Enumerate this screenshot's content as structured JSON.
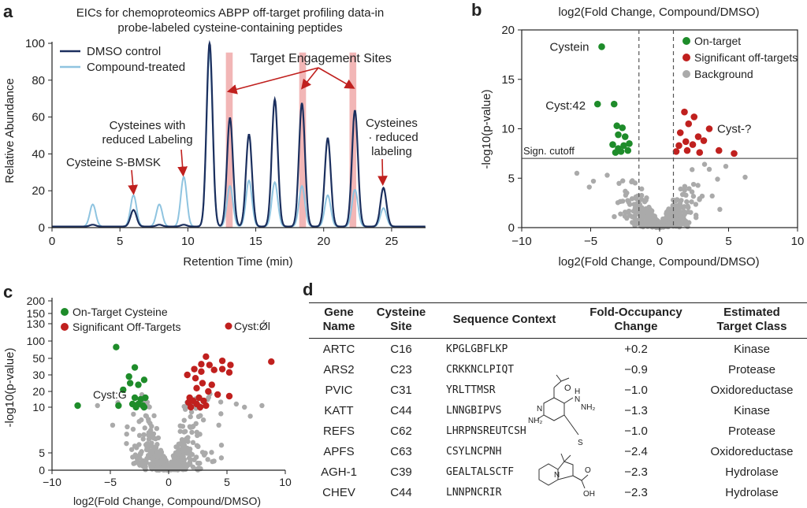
{
  "panels": {
    "a_label": "a",
    "b_label": "b",
    "c_label": "c",
    "d_label": "d"
  },
  "chart_data": [
    {
      "type": "line",
      "panel": "a",
      "title": "EICs for chemoproteomics ABPP off-target profiling data-in probe-labeled cysteine-containing peptides",
      "title_lines": [
        "EICs for chemoproteomics ABPP off-target profiling data-in",
        "probe-labeled cysteine-containing peptides"
      ],
      "xlabel": "Retention Time (min)",
      "ylabel": "Relative Abundance",
      "xlim": [
        0,
        27.5
      ],
      "ylim": [
        0,
        100
      ],
      "xticks": [
        0,
        5,
        10,
        15,
        20,
        25
      ],
      "yticks": [
        0,
        20,
        40,
        60,
        80,
        100
      ],
      "legend_position": "top-left",
      "series": [
        {
          "name": "DMSO control",
          "color": "#1b2f5e",
          "peaks": [
            {
              "t": 3.0,
              "h": 1
            },
            {
              "t": 6.0,
              "h": 9
            },
            {
              "t": 7.9,
              "h": 1
            },
            {
              "t": 9.7,
              "h": 1
            },
            {
              "t": 11.6,
              "h": 100
            },
            {
              "t": 13.1,
              "h": 59
            },
            {
              "t": 14.5,
              "h": 50
            },
            {
              "t": 16.4,
              "h": 69
            },
            {
              "t": 18.4,
              "h": 67
            },
            {
              "t": 20.3,
              "h": 48
            },
            {
              "t": 22.3,
              "h": 63
            },
            {
              "t": 24.4,
              "h": 21
            }
          ]
        },
        {
          "name": "Compound-treated",
          "color": "#8fc4e0",
          "peaks": [
            {
              "t": 3.0,
              "h": 12
            },
            {
              "t": 6.0,
              "h": 17
            },
            {
              "t": 7.9,
              "h": 12
            },
            {
              "t": 9.7,
              "h": 27
            },
            {
              "t": 11.6,
              "h": 95
            },
            {
              "t": 13.1,
              "h": 22
            },
            {
              "t": 14.5,
              "h": 25
            },
            {
              "t": 16.4,
              "h": 24
            },
            {
              "t": 18.4,
              "h": 22
            },
            {
              "t": 20.3,
              "h": 17
            },
            {
              "t": 22.3,
              "h": 20
            },
            {
              "t": 24.4,
              "h": 10
            }
          ]
        }
      ],
      "highlight_bands": [
        {
          "from": 12.8,
          "to": 13.3
        },
        {
          "from": 18.2,
          "to": 18.7
        },
        {
          "from": 21.9,
          "to": 22.4
        }
      ],
      "annotations": {
        "target_engagement": "Target Engagement Sites",
        "reduced_labeling_left_1": "Cysteines with",
        "reduced_labeling_left_2": "reduced Labeling",
        "cysteine_bmsk": "Cysteine S-BMSK",
        "reduced_right_1": "Cysteines",
        "reduced_right_2": "· reduced",
        "reduced_right_3": "labeling"
      }
    },
    {
      "type": "scatter",
      "panel": "b",
      "title": "log2(Fold Change, Compound/DMSO)",
      "xlabel": "log2(Fold Change, Compound/DMSO)",
      "ylabel": "-log10(p-value)",
      "xlim": [
        -10,
        10
      ],
      "ylim": [
        0,
        20
      ],
      "xticks": [
        -10,
        -5,
        0,
        5,
        10
      ],
      "yticks": [
        0,
        5,
        10,
        15,
        20
      ],
      "cutoff_label": "Sign. cutoff",
      "cutoff_y": 7,
      "fc_cutoffs": [
        -1.5,
        1.0
      ],
      "legend_position": "top-right",
      "legend": [
        {
          "name": "On-target",
          "color": "#1e8c2a"
        },
        {
          "name": "Significant off-targets",
          "color": "#c0201e"
        },
        {
          "name": "Background",
          "color": "#aaaaaa"
        }
      ],
      "point_labels": [
        {
          "text": "Cystein",
          "x": -4.2,
          "y": 18.3
        },
        {
          "text": "Cyst:42",
          "x": -4.5,
          "y": 12.5
        },
        {
          "text": "Cyst-?",
          "x": 3.6,
          "y": 10.0
        }
      ],
      "on_target": [
        [
          -4.2,
          18.3
        ],
        [
          -4.5,
          12.5
        ],
        [
          -3.3,
          12.5
        ],
        [
          -3.1,
          10.3
        ],
        [
          -2.7,
          10.1
        ],
        [
          -3.0,
          9.4
        ],
        [
          -2.5,
          9.2
        ],
        [
          -3.4,
          8.4
        ],
        [
          -2.6,
          8.3
        ],
        [
          -2.2,
          8.5
        ],
        [
          -3.2,
          7.6
        ],
        [
          -2.8,
          7.7
        ],
        [
          -2.3,
          7.8
        ],
        [
          -3.0,
          8.0
        ]
      ],
      "off_target": [
        [
          1.8,
          11.7
        ],
        [
          2.5,
          11.2
        ],
        [
          2.1,
          10.5
        ],
        [
          3.6,
          10.0
        ],
        [
          1.5,
          9.6
        ],
        [
          2.8,
          9.2
        ],
        [
          1.9,
          8.7
        ],
        [
          3.2,
          8.8
        ],
        [
          1.4,
          8.3
        ],
        [
          2.4,
          8.4
        ],
        [
          1.2,
          7.7
        ],
        [
          2.0,
          7.8
        ],
        [
          2.9,
          7.6
        ],
        [
          4.3,
          7.8
        ],
        [
          5.4,
          7.5
        ]
      ]
    },
    {
      "type": "scatter",
      "panel": "c",
      "xlabel": "log2(Fold Change, Compound/DMSO)",
      "ylabel": "-log10(p-value)",
      "xlim": [
        -10,
        10
      ],
      "ylim": [
        0,
        200
      ],
      "xticks": [
        -10,
        -5,
        0,
        5,
        10
      ],
      "yticks": [
        0,
        5,
        10,
        20,
        30,
        50,
        70,
        100,
        130,
        150,
        200
      ],
      "legend_position": "top-left",
      "legend": [
        {
          "name": "On-Target Cysteine",
          "color": "#1e8c2a"
        },
        {
          "name": "Significant Off-Targets",
          "color": "#c0201e"
        }
      ],
      "point_labels": [
        {
          "text": "Cyst:G",
          "x": -4.2,
          "y": 15
        },
        {
          "text": "Cyst:Ǿl",
          "x": 6.0,
          "y": 130
        }
      ],
      "on_target": [
        [
          -7.8,
          11
        ],
        [
          -4.5,
          63
        ],
        [
          -4.3,
          11
        ],
        [
          -3.9,
          21
        ],
        [
          -2.9,
          39
        ],
        [
          -3.3,
          25
        ],
        [
          -2.6,
          24
        ],
        [
          -2.9,
          16
        ],
        [
          -2.4,
          15
        ],
        [
          -2.0,
          16
        ],
        [
          -3.1,
          12
        ],
        [
          -2.6,
          12
        ],
        [
          -2.2,
          11
        ],
        [
          -2.8,
          10
        ],
        [
          -2.1,
          10
        ],
        [
          -3.4,
          29
        ],
        [
          -2.1,
          27
        ]
      ],
      "off_target": [
        [
          1.6,
          30
        ],
        [
          2.2,
          37
        ],
        [
          2.8,
          43
        ],
        [
          3.2,
          52
        ],
        [
          3.5,
          42
        ],
        [
          2.8,
          34
        ],
        [
          3.9,
          36
        ],
        [
          4.6,
          37
        ],
        [
          5.2,
          33
        ],
        [
          2.3,
          28
        ],
        [
          2.9,
          25
        ],
        [
          3.7,
          24
        ],
        [
          2.4,
          22
        ],
        [
          3.4,
          20
        ],
        [
          4.2,
          18
        ],
        [
          5.2,
          17
        ],
        [
          1.8,
          16
        ],
        [
          2.6,
          16
        ],
        [
          2.1,
          14
        ],
        [
          3.0,
          14
        ],
        [
          1.7,
          13
        ],
        [
          2.4,
          12
        ],
        [
          3.2,
          11
        ],
        [
          1.9,
          10
        ],
        [
          2.7,
          10
        ],
        [
          8.8,
          46
        ],
        [
          4.6,
          47
        ],
        [
          5.3,
          42
        ]
      ]
    }
  ],
  "table": {
    "headers": [
      [
        "Gene",
        "Name"
      ],
      [
        "Cysteine",
        "Site"
      ],
      [
        "Sequence Context"
      ],
      [
        "Fold-Occupancy",
        "Change"
      ],
      [
        "Estimated",
        "Target Class"
      ]
    ],
    "rows": [
      [
        "ARTC",
        "C16",
        "KPGLGBFLKP",
        "+0.2",
        "Kinase"
      ],
      [
        "ARS2",
        "C23",
        "CRKKNCLPIQT",
        "−0.9",
        "Protease"
      ],
      [
        "PVIC",
        "C31",
        "YRLTTMSR",
        "−1.0",
        "Oxidoreductase"
      ],
      [
        "KATT",
        "C44",
        "LNNGBIPVS",
        "−1.3",
        "Kinase"
      ],
      [
        "REFS",
        "C62",
        "LHRPNSREUTCSH",
        "−1.0",
        "Protease"
      ],
      [
        "APFS",
        "C63",
        "CSYLNCPNH",
        "−2.4",
        "Oxidoreductase"
      ],
      [
        "AGH-1",
        "C39",
        "GEALTALSCTF",
        "−2.3",
        "Hydrolase"
      ],
      [
        "CHEV",
        "C44",
        "LNNPNCRIR",
        "−2.3",
        "Hydrolase"
      ]
    ],
    "structure_labels": {
      "nh2": "NH₂",
      "nh": "N",
      "h": "H",
      "s": "S",
      "o": "O",
      "oh": "OH"
    }
  },
  "colors": {
    "dmso": "#1b2f5e",
    "compound": "#8fc4e0",
    "highlight": "#f2b6b6",
    "arrow": "#c0201e",
    "green": "#1e8c2a",
    "red": "#c0201e",
    "grey": "#aaaaaa"
  }
}
